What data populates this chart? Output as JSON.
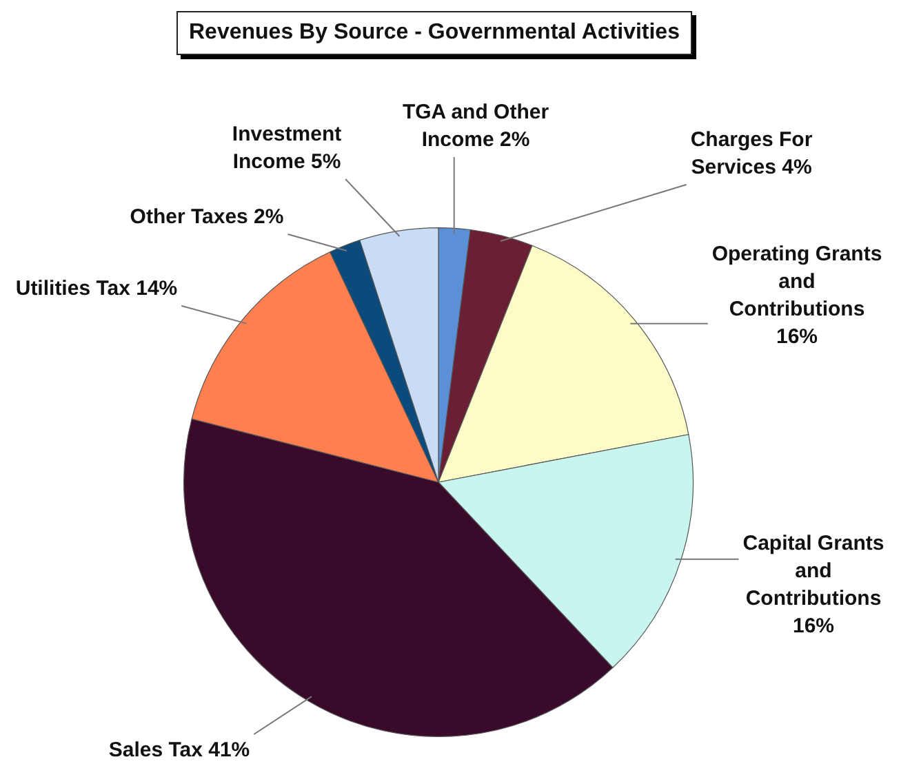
{
  "chart_data": {
    "type": "pie",
    "title": "Revenues By Source - Governmental Activities",
    "categories": [
      "TGA and Other Income",
      "Charges For Services",
      "Operating Grants and Contributions",
      "Capital Grants and Contributions",
      "Sales Tax",
      "Utilities Tax",
      "Other Taxes",
      "Investment Income"
    ],
    "values": [
      2,
      4,
      16,
      16,
      41,
      14,
      2,
      5
    ],
    "value_labels": [
      "2%",
      "4%",
      "16%",
      "16%",
      "41%",
      "14%",
      "2%",
      "5%"
    ],
    "colors": [
      "#5b8fd6",
      "#6b1f35",
      "#fdfbc8",
      "#c8f5ee",
      "#3a0a2a",
      "#ff7f50",
      "#0b4a7a",
      "#c8dcf5"
    ],
    "legend": false
  }
}
